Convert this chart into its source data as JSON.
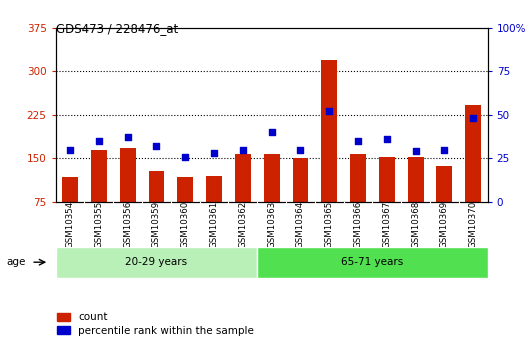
{
  "title": "GDS473 / 228476_at",
  "samples": [
    "GSM10354",
    "GSM10355",
    "GSM10356",
    "GSM10359",
    "GSM10360",
    "GSM10361",
    "GSM10362",
    "GSM10363",
    "GSM10364",
    "GSM10365",
    "GSM10366",
    "GSM10367",
    "GSM10368",
    "GSM10369",
    "GSM10370"
  ],
  "counts": [
    118,
    165,
    168,
    128,
    118,
    120,
    158,
    158,
    150,
    320,
    158,
    152,
    152,
    136,
    242
  ],
  "percentile_ranks": [
    30,
    35,
    37,
    32,
    26,
    28,
    30,
    40,
    30,
    52,
    35,
    36,
    29,
    30,
    48
  ],
  "groups": [
    {
      "label": "20-29 years",
      "start": 0,
      "end": 7,
      "color": "#b8f0b8"
    },
    {
      "label": "65-71 years",
      "start": 7,
      "end": 15,
      "color": "#50e050"
    }
  ],
  "left_ylim": [
    75,
    375
  ],
  "left_yticks": [
    75,
    150,
    225,
    300,
    375
  ],
  "right_ylim": [
    0,
    100
  ],
  "right_yticks": [
    0,
    25,
    50,
    75,
    100
  ],
  "bar_color": "#cc2200",
  "dot_color": "#0000cc",
  "plot_bg": "#ffffff",
  "tick_bg": "#c8c8c8",
  "age_label": "age",
  "legend_count": "count",
  "legend_pct": "percentile rank within the sample",
  "left_tick_color": "#cc2200",
  "right_tick_color": "#0000cc",
  "grid_yticks": [
    150,
    225,
    300
  ]
}
